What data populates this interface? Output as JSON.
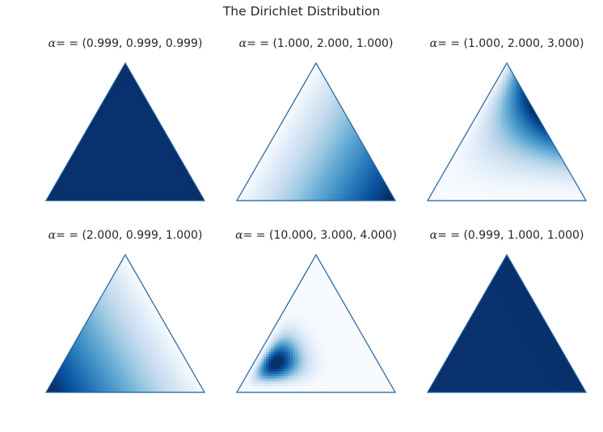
{
  "title": "The Dirichlet Distribution",
  "colormap": "Blues",
  "edge_color": "#1f5f9b",
  "chart_data": [
    {
      "type": "heatmap",
      "title_prefix": "α",
      "title_eq": "= =",
      "title_values": "(0.999, 0.999, 0.999)",
      "alpha": [
        0.999,
        0.999,
        0.999
      ]
    },
    {
      "type": "heatmap",
      "title_prefix": "α",
      "title_eq": "= =",
      "title_values": "(1.000, 2.000, 1.000)",
      "alpha": [
        1.0,
        2.0,
        1.0
      ]
    },
    {
      "type": "heatmap",
      "title_prefix": "α",
      "title_eq": "= =",
      "title_values": "(1.000, 2.000, 3.000)",
      "alpha": [
        1.0,
        2.0,
        3.0
      ]
    },
    {
      "type": "heatmap",
      "title_prefix": "α",
      "title_eq": "= =",
      "title_values": "(2.000, 0.999, 1.000)",
      "alpha": [
        2.0,
        0.999,
        1.0
      ]
    },
    {
      "type": "heatmap",
      "title_prefix": "α",
      "title_eq": "= =",
      "title_values": "(10.000, 3.000, 4.000)",
      "alpha": [
        10.0,
        3.0,
        4.0
      ]
    },
    {
      "type": "heatmap",
      "title_prefix": "α",
      "title_eq": "= =",
      "title_values": "(0.999, 1.000, 1.000)",
      "alpha": [
        0.999,
        1.0,
        1.0
      ]
    }
  ]
}
